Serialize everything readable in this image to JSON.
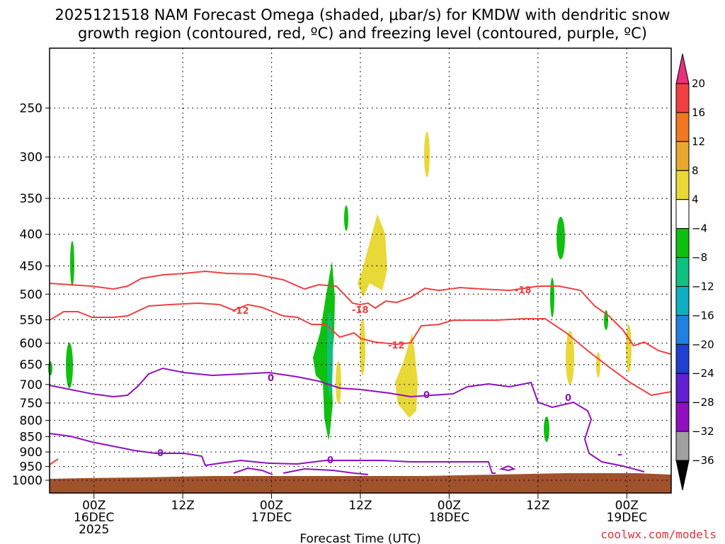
{
  "title": {
    "line1": "2025121518 NAM Forecast Omega (shaded, μbar/s) for KMDW with dendritic snow",
    "line2": "growth region (contoured, red, ºC) and freezing level (contoured, purple, ºC)"
  },
  "credit": "coolwx.com/models",
  "chart_data": {
    "type": "heatmap",
    "xlabel": "Forecast Time (UTC)",
    "x_range_hours_after_start": [
      0,
      84
    ],
    "ylabel": "",
    "ylim_hPa": [
      1000,
      200
    ],
    "y_ticks": [
      "250",
      "300",
      "350",
      "400",
      "450",
      "500",
      "550",
      "600",
      "650",
      "700",
      "750",
      "800",
      "850",
      "900",
      "950",
      "1000"
    ],
    "x_ticks": [
      {
        "l1": "00Z",
        "l2": "16DEC",
        "l3": "2025",
        "hour": 6
      },
      {
        "l1": "12Z",
        "l2": "",
        "l3": "",
        "hour": 18
      },
      {
        "l1": "00Z",
        "l2": "17DEC",
        "l3": "",
        "hour": 30
      },
      {
        "l1": "12Z",
        "l2": "",
        "l3": "",
        "hour": 42
      },
      {
        "l1": "00Z",
        "l2": "18DEC",
        "l3": "",
        "hour": 54
      },
      {
        "l1": "12Z",
        "l2": "",
        "l3": "",
        "hour": 66
      },
      {
        "l1": "00Z",
        "l2": "19DEC",
        "l3": "",
        "hour": 78
      }
    ],
    "grid": true,
    "colorbar": {
      "labels": [
        "20",
        "16",
        "12",
        "8",
        "4",
        "−4",
        "−8",
        "−12",
        "−16",
        "−20",
        "−24",
        "−28",
        "−32",
        "−36"
      ],
      "colors": [
        "#e8307a",
        "#f04040",
        "#f07820",
        "#e8a830",
        "#e8d838",
        "#ffffff",
        "#10c010",
        "#10c080",
        "#10b0c0",
        "#2080e0",
        "#2040d0",
        "#6020d0",
        "#9010c0",
        "#a0a0a0",
        "#000000"
      ]
    },
    "terrain_color": "#a0522d",
    "contour_labels": {
      "dgz_red": [
        "-12",
        "-18",
        "-12",
        "-18"
      ],
      "freezing_purple": [
        "0",
        "0",
        "0",
        "0"
      ]
    }
  }
}
